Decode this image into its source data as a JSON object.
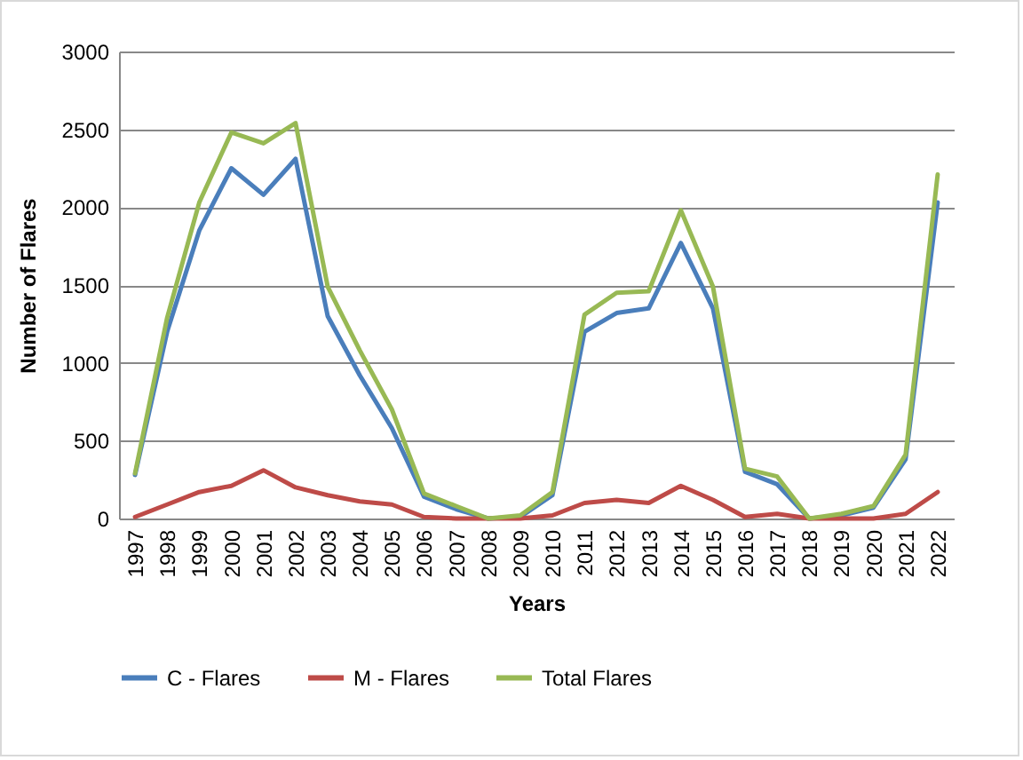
{
  "chart_data": {
    "type": "line",
    "xlabel": "Years",
    "ylabel": "Number of Flares",
    "categories": [
      "1997",
      "1998",
      "1999",
      "2000",
      "2001",
      "2002",
      "2003",
      "2004",
      "2005",
      "2006",
      "2007",
      "2008",
      "2009",
      "2010",
      "2011",
      "2012",
      "2013",
      "2014",
      "2015",
      "2016",
      "2017",
      "2018",
      "2019",
      "2020",
      "2021",
      "2022"
    ],
    "series": [
      {
        "name": "C - Flares",
        "color": "#4a7ebb",
        "values": [
          280,
          1200,
          1850,
          2250,
          2080,
          2310,
          1300,
          920,
          580,
          140,
          60,
          0,
          10,
          150,
          1200,
          1320,
          1350,
          1770,
          1350,
          300,
          220,
          0,
          20,
          70,
          380,
          2030
        ]
      },
      {
        "name": "M - Flares",
        "color": "#be4b48",
        "values": [
          10,
          90,
          170,
          210,
          310,
          200,
          150,
          110,
          90,
          10,
          0,
          0,
          0,
          20,
          100,
          120,
          100,
          210,
          120,
          10,
          30,
          0,
          0,
          0,
          30,
          170
        ]
      },
      {
        "name": "Total Flares",
        "color": "#98b954",
        "values": [
          290,
          1290,
          2030,
          2480,
          2410,
          2540,
          1490,
          1080,
          700,
          160,
          80,
          0,
          20,
          170,
          1310,
          1450,
          1460,
          1980,
          1490,
          320,
          270,
          0,
          30,
          80,
          410,
          2210
        ]
      }
    ],
    "ylim": [
      0,
      3000
    ],
    "yticks": [
      0,
      500,
      1000,
      1500,
      2000,
      2500,
      3000
    ],
    "grid": "y",
    "legend": "bottom",
    "marker": "none",
    "line_style": "solid"
  }
}
